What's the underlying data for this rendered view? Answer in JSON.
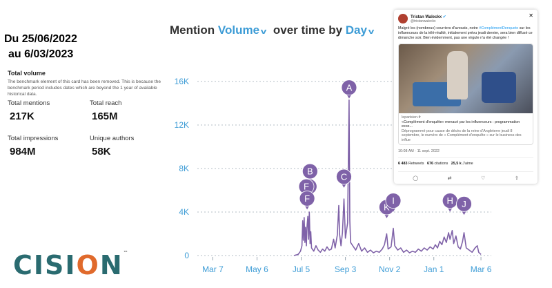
{
  "header": {
    "date_range_line1": "Du 25/06/2022",
    "date_range_line2": "au 6/03/2023"
  },
  "card": {
    "title": "Total volume",
    "note": "The benchmark element of this card has been removed. This is because the benchmark period includes dates which are beyond the 1 year of available historical data.",
    "metrics": [
      {
        "label": "Total mentions",
        "value": "217K"
      },
      {
        "label": "Total reach",
        "value": "165M"
      },
      {
        "label": "Total impressions",
        "value": "984M"
      },
      {
        "label": "Unique authors",
        "value": "58K"
      }
    ]
  },
  "brand": {
    "logo_text_a": "CISI",
    "logo_text_o": "O",
    "logo_text_b": "N",
    "logo_tm": "™",
    "primary_color": "#2a6b70",
    "accent_color": "#e06a2c"
  },
  "chart_title": {
    "prefix": "Mention",
    "metric": "Volume",
    "middle": "over time by",
    "interval": "Day"
  },
  "chart_data": {
    "type": "line",
    "title": "Mention Volume over time by Day",
    "x_tick_labels": [
      "Mar 7",
      "May 6",
      "Jul 5",
      "Sep 3",
      "Nov 2",
      "Jan 1",
      "Mar 6"
    ],
    "x_range": [
      "2022-02-14",
      "2023-03-20"
    ],
    "ylim": [
      0,
      16000
    ],
    "y_ticks": [
      0,
      4000,
      8000,
      12000,
      16000
    ],
    "y_tick_labels": [
      "0",
      "4K",
      "8K",
      "12K",
      "16K"
    ],
    "grid": true,
    "line_color": "#7f62a8",
    "series": [
      {
        "points": [
          [
            "2022-06-25",
            0
          ],
          [
            "2022-06-28",
            50
          ],
          [
            "2022-07-01",
            120
          ],
          [
            "2022-07-04",
            400
          ],
          [
            "2022-07-06",
            900
          ],
          [
            "2022-07-07",
            3200
          ],
          [
            "2022-07-08",
            1400
          ],
          [
            "2022-07-09",
            3500
          ],
          [
            "2022-07-10",
            1200
          ],
          [
            "2022-07-11",
            2600
          ],
          [
            "2022-07-12",
            900
          ],
          [
            "2022-07-13",
            2800
          ],
          [
            "2022-07-14",
            3600
          ],
          [
            "2022-07-15",
            1500
          ],
          [
            "2022-07-16",
            4000
          ],
          [
            "2022-07-17",
            1100
          ],
          [
            "2022-07-18",
            2200
          ],
          [
            "2022-07-19",
            700
          ],
          [
            "2022-07-22",
            400
          ],
          [
            "2022-07-25",
            900
          ],
          [
            "2022-07-28",
            500
          ],
          [
            "2022-07-31",
            300
          ],
          [
            "2022-08-03",
            600
          ],
          [
            "2022-08-06",
            400
          ],
          [
            "2022-08-09",
            800
          ],
          [
            "2022-08-12",
            500
          ],
          [
            "2022-08-15",
            600
          ],
          [
            "2022-08-18",
            1500
          ],
          [
            "2022-08-20",
            700
          ],
          [
            "2022-08-23",
            1900
          ],
          [
            "2022-08-25",
            4600
          ],
          [
            "2022-08-26",
            2000
          ],
          [
            "2022-08-28",
            900
          ],
          [
            "2022-08-30",
            2100
          ],
          [
            "2022-09-01",
            5200
          ],
          [
            "2022-09-03",
            1600
          ],
          [
            "2022-09-06",
            3000
          ],
          [
            "2022-09-08",
            14300
          ],
          [
            "2022-09-09",
            3200
          ],
          [
            "2022-09-10",
            1200
          ],
          [
            "2022-09-13",
            900
          ],
          [
            "2022-09-17",
            500
          ],
          [
            "2022-09-21",
            1100
          ],
          [
            "2022-09-25",
            400
          ],
          [
            "2022-09-29",
            700
          ],
          [
            "2022-10-03",
            300
          ],
          [
            "2022-10-07",
            500
          ],
          [
            "2022-10-11",
            250
          ],
          [
            "2022-10-15",
            400
          ],
          [
            "2022-10-19",
            300
          ],
          [
            "2022-10-23",
            600
          ],
          [
            "2022-10-26",
            1000
          ],
          [
            "2022-10-29",
            2000
          ],
          [
            "2022-10-31",
            600
          ],
          [
            "2022-11-04",
            800
          ],
          [
            "2022-11-07",
            2500
          ],
          [
            "2022-11-09",
            900
          ],
          [
            "2022-11-13",
            500
          ],
          [
            "2022-11-17",
            700
          ],
          [
            "2022-11-21",
            300
          ],
          [
            "2022-11-25",
            500
          ],
          [
            "2022-11-29",
            250
          ],
          [
            "2022-12-03",
            400
          ],
          [
            "2022-12-07",
            300
          ],
          [
            "2022-12-11",
            600
          ],
          [
            "2022-12-15",
            400
          ],
          [
            "2022-12-19",
            700
          ],
          [
            "2022-12-23",
            500
          ],
          [
            "2022-12-27",
            800
          ],
          [
            "2022-12-31",
            600
          ],
          [
            "2023-01-03",
            1000
          ],
          [
            "2023-01-06",
            700
          ],
          [
            "2023-01-09",
            1300
          ],
          [
            "2023-01-12",
            1000
          ],
          [
            "2023-01-15",
            1700
          ],
          [
            "2023-01-18",
            1200
          ],
          [
            "2023-01-21",
            2100
          ],
          [
            "2023-01-23",
            1500
          ],
          [
            "2023-01-26",
            2300
          ],
          [
            "2023-01-28",
            1100
          ],
          [
            "2023-01-31",
            1800
          ],
          [
            "2023-02-03",
            800
          ],
          [
            "2023-02-06",
            600
          ],
          [
            "2023-02-09",
            1300
          ],
          [
            "2023-02-11",
            2100
          ],
          [
            "2023-02-14",
            700
          ],
          [
            "2023-02-18",
            500
          ],
          [
            "2023-02-22",
            300
          ],
          [
            "2023-02-26",
            700
          ],
          [
            "2023-03-01",
            900
          ],
          [
            "2023-03-03",
            300
          ],
          [
            "2023-03-06",
            100
          ]
        ]
      }
    ],
    "annotations": [
      {
        "label": "A",
        "date": "2022-09-08",
        "value": 14300
      },
      {
        "label": "B",
        "date": "2022-07-17",
        "value": 6600
      },
      {
        "label": "C",
        "date": "2022-09-01",
        "value": 6100
      },
      {
        "label": "D",
        "date": "2022-07-16",
        "value": 5200
      },
      {
        "label": "F",
        "date": "2022-07-12",
        "value": 5200
      },
      {
        "label": "F",
        "date": "2022-07-13",
        "value": 4100
      },
      {
        "label": "K",
        "date": "2022-10-29",
        "value": 3300
      },
      {
        "label": "I",
        "date": "2022-11-07",
        "value": 3900
      },
      {
        "label": "H",
        "date": "2023-01-23",
        "value": 3900
      },
      {
        "label": "J",
        "date": "2023-02-11",
        "value": 3600
      }
    ]
  },
  "tweet": {
    "author_name": "Tristan Waleckx",
    "verified_icon": "✔",
    "handle": "@tristanwaleckx",
    "close_icon": "✕",
    "text_before_hashtag": "Malgré les (nombreux) courriers d'avocats, notre",
    "hashtag": "#ComplémentDenquete",
    "text_after_hashtag": "sur les influenceurs de la télé-réalité, initialement prévu jeudi dernier, sera bien diffusé ce dimanche soir. Bien évidemment, pas une virgule n'a été changée !",
    "link_domain": "leparisien.fr",
    "link_title": "«Complément d'enquête» menacé par les influenceurs : programmation exce...",
    "link_description": "Déprogrammé pour cause de décès de la reine d'Angleterre jeudi 8 septembre, le numéro de « Complément d'enquête » sur le business des influe",
    "timestamp": "10:08 AM · 11 sept. 2022",
    "retweets_count": "6 483",
    "retweets_label": "Retweets",
    "quotes_count": "676",
    "quotes_label": "citations",
    "likes_count": "25,5 k",
    "likes_label": "J'aime",
    "actions": [
      "reply-icon",
      "retweet-icon",
      "like-icon",
      "share-icon"
    ],
    "action_glyphs": [
      "◯",
      "⇄",
      "♡",
      "⇧"
    ]
  }
}
